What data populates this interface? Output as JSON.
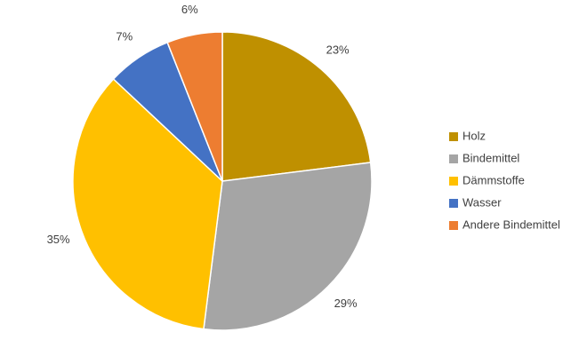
{
  "chart_data": {
    "type": "pie",
    "categories": [
      "Holz",
      "Bindemittel",
      "Dämmstoffe",
      "Wasser",
      "Andere Bindemittel"
    ],
    "values": [
      23,
      29,
      35,
      7,
      6
    ],
    "value_labels": [
      "23%",
      "29%",
      "35%",
      "7%",
      "6%"
    ],
    "colors": [
      "#bf9000",
      "#a5a5a5",
      "#ffc000",
      "#4472c4",
      "#ed7d31"
    ]
  }
}
